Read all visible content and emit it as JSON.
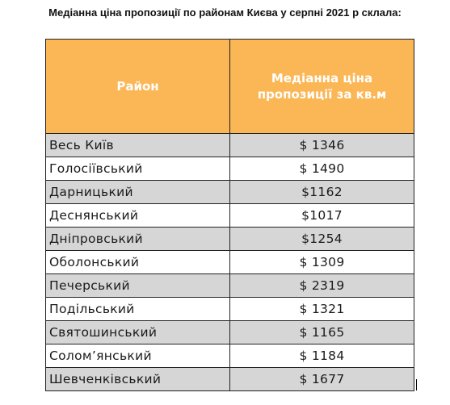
{
  "title": "Медіанна ціна пропозиції по районам Києва у серпні 2021 р склала:",
  "table": {
    "headers": {
      "district": "Район",
      "price": "Медіанна ціна пропозиції за кв.м"
    },
    "header_color": "#fbb655",
    "shaded_row_color": "#d6d6d6",
    "rows": [
      {
        "district": "Весь Київ",
        "price": "$ 1346"
      },
      {
        "district": "Голосіївський",
        "price": "$ 1490"
      },
      {
        "district": "Дарницький",
        "price": "$1162"
      },
      {
        "district": "Деснянський",
        "price": "$1017"
      },
      {
        "district": "Дніпровський",
        "price": "$1254"
      },
      {
        "district": "Оболонський",
        "price": "$ 1309"
      },
      {
        "district": "Печерський",
        "price": "$ 2319"
      },
      {
        "district": "Подільський",
        "price": "$ 1321"
      },
      {
        "district": "Святошинський",
        "price": "$ 1165"
      },
      {
        "district": "Солом’янський",
        "price": "$ 1184"
      },
      {
        "district": "Шевченківський",
        "price": "$ 1677"
      }
    ]
  }
}
